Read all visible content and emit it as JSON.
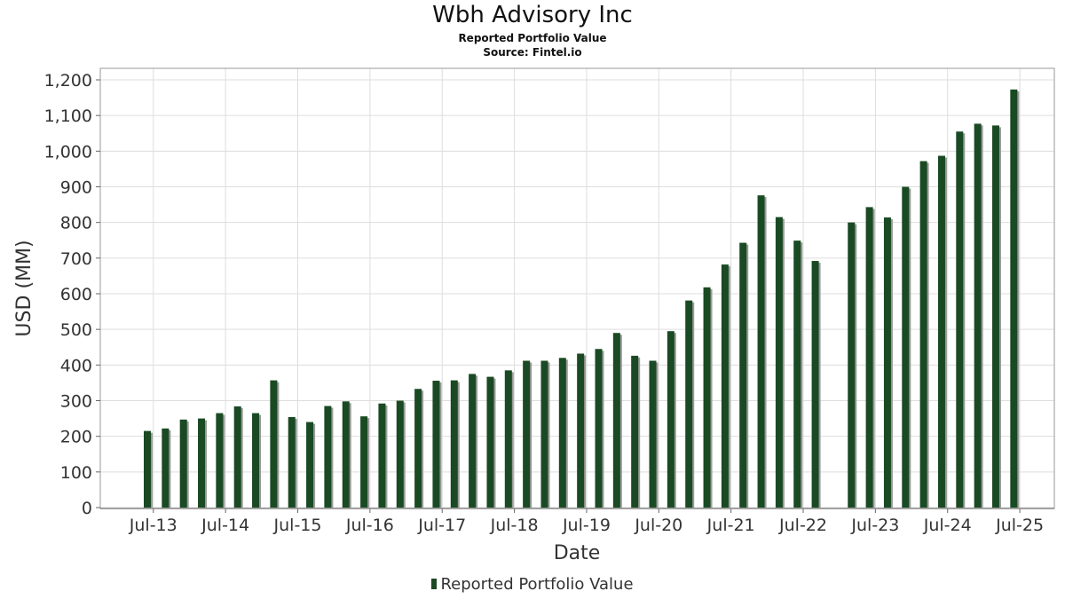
{
  "chart_data": {
    "type": "bar",
    "title": "Wbh Advisory Inc",
    "subtitle_1": "Reported Portfolio Value",
    "subtitle_2": "Source: Fintel.io",
    "xlabel": "Date",
    "ylabel": "USD (MM)",
    "ylim": [
      0,
      1200
    ],
    "yticks": [
      0,
      100,
      200,
      300,
      400,
      500,
      600,
      700,
      800,
      900,
      1000,
      1100,
      1200
    ],
    "ytick_labels": [
      "0",
      "100",
      "200",
      "300",
      "400",
      "500",
      "600",
      "700",
      "800",
      "900",
      "1,000",
      "1,100",
      "1,200"
    ],
    "xtick_labels": [
      "Jul-13",
      "Jul-14",
      "Jul-15",
      "Jul-16",
      "Jul-17",
      "Jul-18",
      "Jul-19",
      "Jul-20",
      "Jul-21",
      "Jul-22",
      "Jul-23",
      "Jul-24",
      "Jul-25"
    ],
    "grid": true,
    "legend_position": "bottom",
    "series": [
      {
        "name": "Reported Portfolio Value",
        "color": "#1a4a23",
        "x": [
          "2013-06",
          "2013-09",
          "2013-12",
          "2014-03",
          "2014-06",
          "2014-09",
          "2014-12",
          "2015-03",
          "2015-06",
          "2015-09",
          "2015-12",
          "2016-03",
          "2016-06",
          "2016-09",
          "2016-12",
          "2017-03",
          "2017-06",
          "2017-09",
          "2017-12",
          "2018-03",
          "2018-06",
          "2018-09",
          "2018-12",
          "2019-03",
          "2019-06",
          "2019-09",
          "2019-12",
          "2020-03",
          "2020-06",
          "2020-09",
          "2020-12",
          "2021-03",
          "2021-06",
          "2021-09",
          "2021-12",
          "2022-03",
          "2022-06",
          "2022-09",
          "2023-03",
          "2023-06",
          "2023-09",
          "2023-12",
          "2024-03",
          "2024-06",
          "2024-09",
          "2024-12",
          "2025-03",
          "2025-06"
        ],
        "values": [
          215,
          222,
          247,
          250,
          265,
          284,
          265,
          357,
          254,
          240,
          285,
          298,
          256,
          292,
          300,
          333,
          356,
          357,
          375,
          367,
          385,
          412,
          412,
          420,
          432,
          445,
          490,
          426,
          412,
          495,
          581,
          618,
          682,
          743,
          876,
          815,
          749,
          692,
          800,
          843,
          814,
          900,
          972,
          987,
          1055,
          1077,
          1072,
          1173
        ]
      }
    ]
  }
}
